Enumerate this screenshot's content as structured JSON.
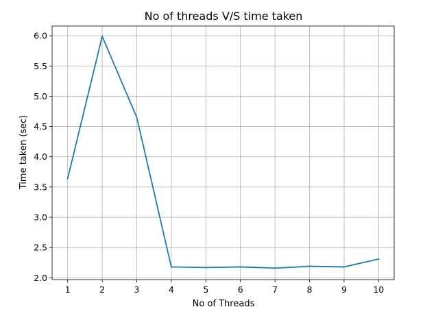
{
  "chart_data": {
    "type": "line",
    "title": "No of threads V/S time taken",
    "xlabel": "No of Threads",
    "ylabel": "Time taken (sec)",
    "x": [
      1,
      2,
      3,
      4,
      5,
      6,
      7,
      8,
      9,
      10
    ],
    "series": [
      {
        "values": [
          3.64,
          5.99,
          4.65,
          2.18,
          2.17,
          2.18,
          2.16,
          2.19,
          2.18,
          2.31
        ],
        "color": "#1f77b4"
      }
    ],
    "xticks": [
      "1",
      "2",
      "3",
      "4",
      "5",
      "6",
      "7",
      "8",
      "9",
      "10"
    ],
    "yticks": [
      "2.0",
      "2.5",
      "3.0",
      "3.5",
      "4.0",
      "4.5",
      "5.0",
      "5.5",
      "6.0"
    ],
    "xlim": [
      0.55,
      10.45
    ],
    "ylim": [
      1.97,
      6.16
    ],
    "grid": true
  }
}
